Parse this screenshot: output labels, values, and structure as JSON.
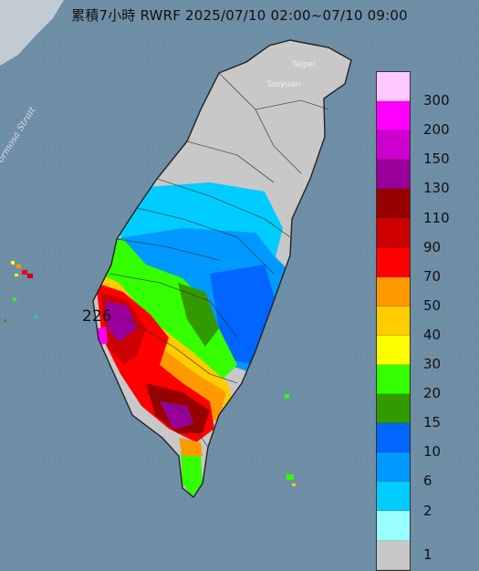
{
  "title": "累積7小時 RWRF 2025/07/10 02:00~07/10 09:00",
  "places": {
    "taipei": "Taipei",
    "taoyuan": "Taoyuan"
  },
  "strait_label": "Formosa Strait",
  "peak_value": "226",
  "legend": {
    "labels": [
      "300",
      "200",
      "150",
      "130",
      "110",
      "90",
      "70",
      "50",
      "40",
      "30",
      "20",
      "15",
      "10",
      "6",
      "2",
      "1"
    ],
    "colors": [
      "#ffc8ff",
      "#ff00ff",
      "#cc00cc",
      "#990099",
      "#990000",
      "#cc0000",
      "#ff0000",
      "#ff9900",
      "#ffcc00",
      "#ffff00",
      "#33ff00",
      "#339900",
      "#0066ff",
      "#0099ff",
      "#00ccff",
      "#99ffff",
      "#c8c8c8"
    ]
  }
}
